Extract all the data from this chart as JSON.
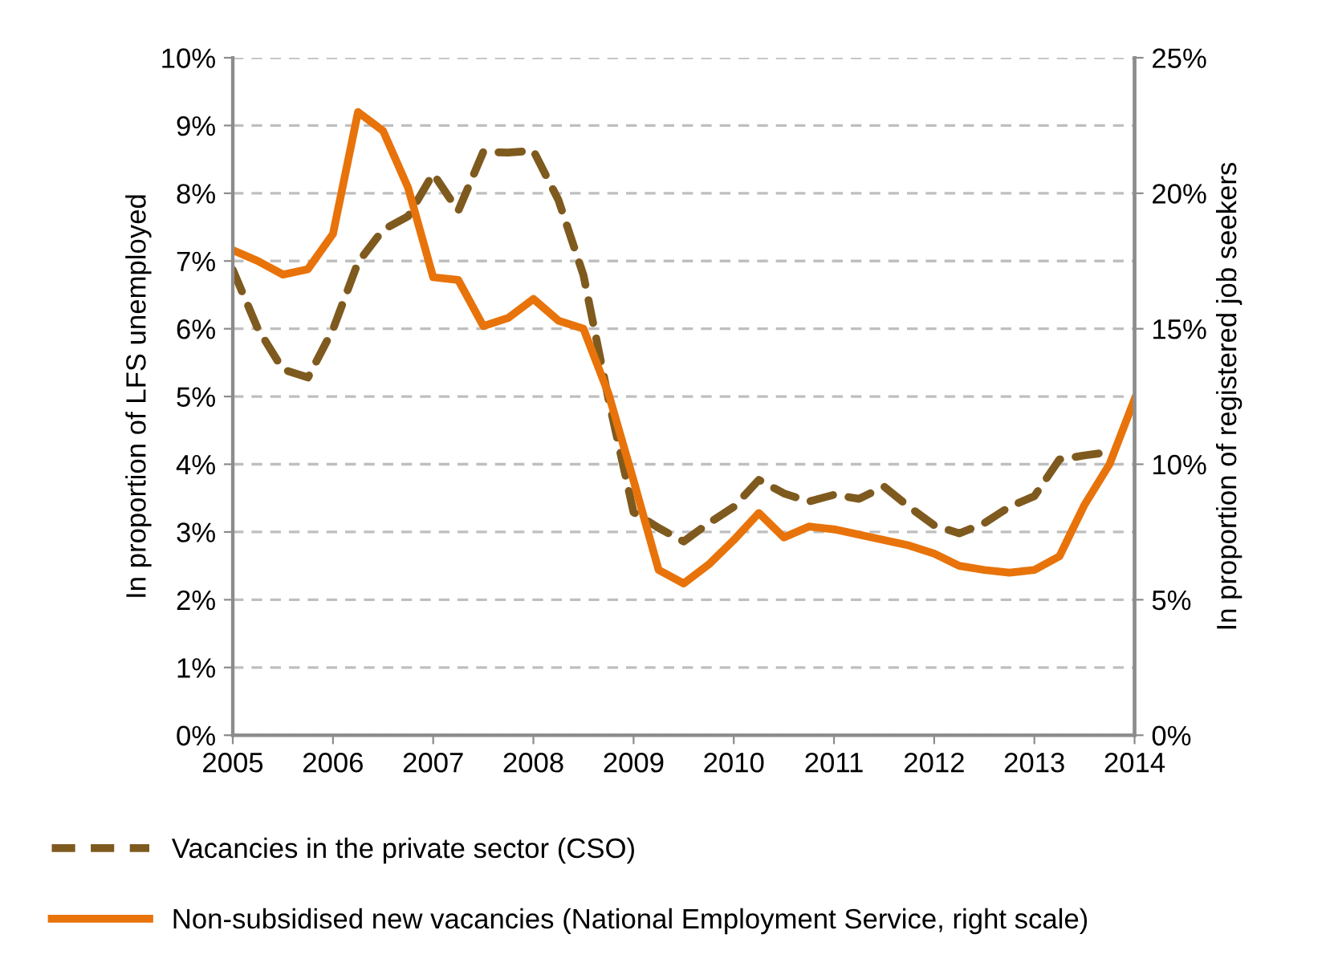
{
  "chart_data": {
    "type": "line",
    "ylabel": "In proportion of LFS unemployed",
    "y2label": "In proportion of registered job seekers",
    "x": [
      2005,
      2005.25,
      2005.5,
      2005.75,
      2006,
      2006.25,
      2006.5,
      2006.75,
      2007,
      2007.25,
      2007.5,
      2007.75,
      2008,
      2008.25,
      2008.5,
      2008.75,
      2009,
      2009.25,
      2009.5,
      2009.75,
      2010,
      2010.25,
      2010.5,
      2010.75,
      2011,
      2011.25,
      2011.5,
      2011.75,
      2012,
      2012.25,
      2012.5,
      2012.75,
      2013,
      2013.25,
      2013.5,
      2013.75,
      2014
    ],
    "series": [
      {
        "name": "Vacancies in the private sector (CSO)",
        "color": "#7f5a1e",
        "line_style": "dashed",
        "axis": "y",
        "values": [
          6.87,
          6.0,
          5.4,
          5.28,
          5.99,
          6.98,
          7.46,
          7.66,
          8.29,
          7.74,
          8.61,
          8.6,
          8.63,
          7.9,
          6.79,
          4.96,
          3.29,
          3.06,
          2.86,
          3.13,
          3.37,
          3.77,
          3.57,
          3.45,
          3.55,
          3.49,
          3.67,
          3.37,
          3.1,
          2.98,
          3.13,
          3.37,
          3.53,
          4.07,
          4.13,
          4.18,
          null
        ]
      },
      {
        "name": "Non-subsidised new vacancies (National Employment Service, right scale)",
        "color": "#e8730a",
        "line_style": "solid",
        "axis": "y2",
        "values": [
          17.9,
          17.5,
          17.0,
          17.2,
          18.5,
          23.0,
          22.3,
          20.2,
          16.9,
          16.8,
          15.1,
          15.4,
          16.1,
          15.3,
          15.0,
          12.6,
          9.4,
          6.1,
          5.6,
          6.3,
          7.2,
          8.2,
          7.3,
          7.7,
          7.6,
          7.4,
          7.2,
          7.0,
          6.7,
          6.25,
          6.1,
          6.0,
          6.1,
          6.6,
          8.5,
          10.0,
          12.4
        ]
      }
    ],
    "xlim": [
      2005,
      2014
    ],
    "xticks": [
      2005,
      2006,
      2007,
      2008,
      2009,
      2010,
      2011,
      2012,
      2013,
      2014
    ],
    "ylim": [
      0,
      10
    ],
    "yticks": [
      {
        "value": 0,
        "label": "0%"
      },
      {
        "value": 1,
        "label": "1%"
      },
      {
        "value": 2,
        "label": "2%"
      },
      {
        "value": 3,
        "label": "3%"
      },
      {
        "value": 4,
        "label": "4%"
      },
      {
        "value": 5,
        "label": "5%"
      },
      {
        "value": 6,
        "label": "6%"
      },
      {
        "value": 7,
        "label": "7%"
      },
      {
        "value": 8,
        "label": "8%"
      },
      {
        "value": 9,
        "label": "9%"
      },
      {
        "value": 10,
        "label": "10%"
      }
    ],
    "y2lim": [
      0,
      25
    ],
    "y2ticks": [
      {
        "value": 0,
        "label": "0%"
      },
      {
        "value": 5,
        "label": "5%"
      },
      {
        "value": 10,
        "label": "10%"
      },
      {
        "value": 15,
        "label": "15%"
      },
      {
        "value": 20,
        "label": "20%"
      },
      {
        "value": 25,
        "label": "25%"
      }
    ],
    "grid": "y",
    "legend": "bottom",
    "marker": "none"
  }
}
